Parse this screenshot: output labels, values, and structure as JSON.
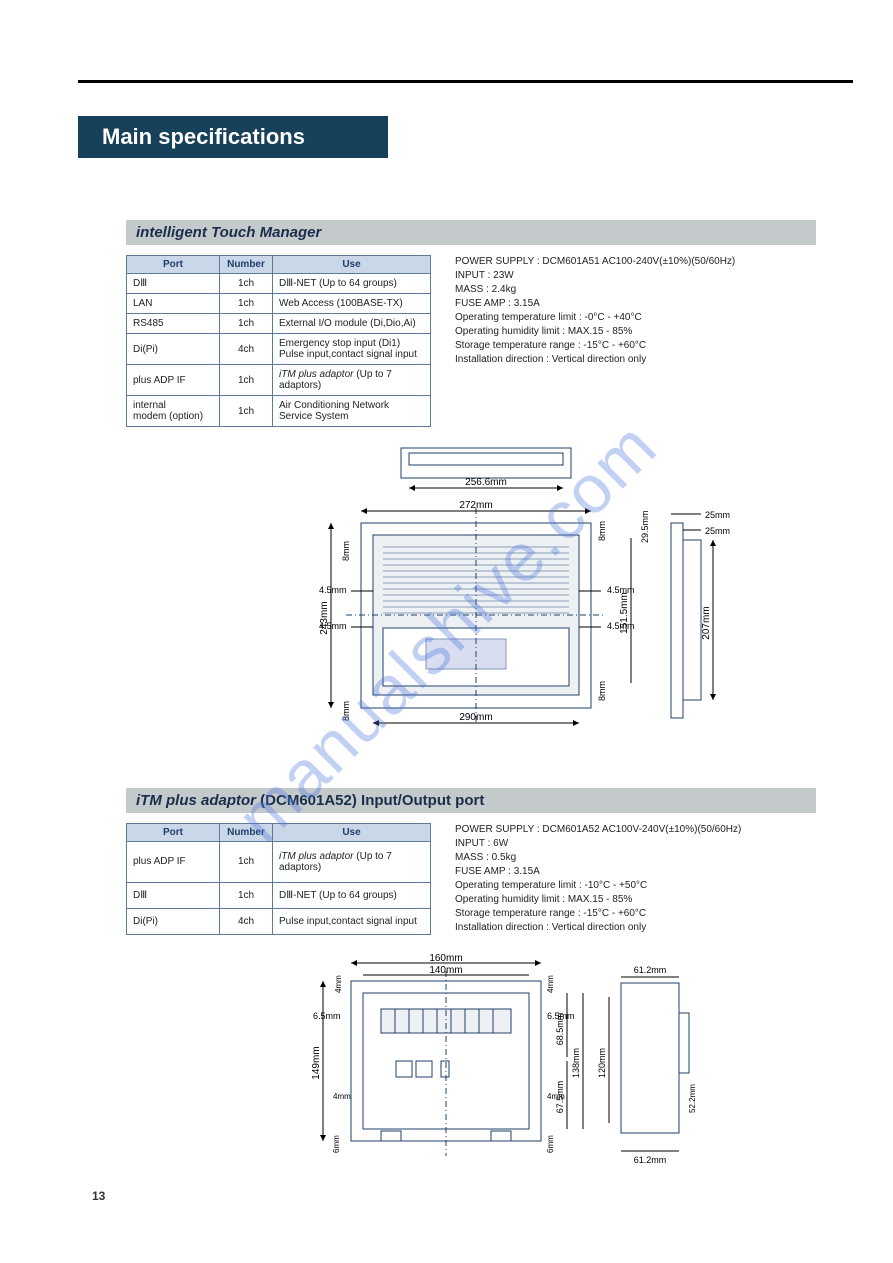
{
  "page_number": "13",
  "watermark": "manualshive.com",
  "main_title": "Main specifications",
  "section1": {
    "title": "intelligent Touch Manager",
    "columns": [
      "Port",
      "Number",
      "Use"
    ],
    "rows": [
      [
        "DⅢ",
        "1ch",
        "DⅢ-NET (Up to 64 groups)"
      ],
      [
        "LAN",
        "1ch",
        "Web Access (100BASE-TX)"
      ],
      [
        "RS485",
        "1ch",
        "External I/O module (Di,Dio,Ai)"
      ],
      [
        "Di(Pi)",
        "4ch",
        "Emergency stop input (Di1)\nPulse input,contact signal input"
      ],
      [
        "plus ADP IF",
        "1ch",
        "iTM plus adaptor (Up to 7 adaptors)"
      ],
      [
        "internal\nmodem (option)",
        "1ch",
        "Air Conditioning Network\nService System"
      ]
    ],
    "specs": [
      "POWER SUPPLY : DCM601A51 AC100-240V(±10%)(50/60Hz)",
      "INPUT : 23W",
      "MASS : 2.4kg",
      "FUSE AMP : 3.15A",
      "Operating temperature limit : -0°C - +40°C",
      "Operating humidity limit : MAX.15 - 85%",
      "Storage temperature range : -15°C - +60°C",
      "Installation direction : Vertical direction only"
    ],
    "diagram": {
      "colors": {
        "stroke": "#20406a",
        "fill": "#ffffff",
        "dim": "#000000"
      },
      "top_view": {
        "width_label": "256.6mm"
      },
      "front_view": {
        "outer_width": "272mm",
        "inner_width": "290mm",
        "height": "243mm",
        "screen_h": "151.5mm",
        "side_gap_top": "8mm",
        "side_gap_bot": "8mm",
        "screw_gap1": "4.5mm",
        "screw_gap2": "4.5mm",
        "right_gap_top": "8mm",
        "right_gap_bot": "8mm",
        "screw_gap3": "4.5mm",
        "screw_gap4": "4.5mm"
      },
      "side_view": {
        "depth_top": "25mm",
        "depth_bot": "25mm",
        "body_h": "207mm",
        "front_offset": "29.5mm"
      }
    }
  },
  "section2": {
    "title_italic": "iTM plus adaptor",
    "title_rest": " (DCM601A52) Input/Output port",
    "columns": [
      "Port",
      "Number",
      "Use"
    ],
    "rows": [
      [
        "plus ADP IF",
        "1ch",
        "iTM plus adaptor (Up to 7 adaptors)"
      ],
      [
        "DⅢ",
        "1ch",
        "DⅢ-NET (Up to 64 groups)"
      ],
      [
        "Di(Pi)",
        "4ch",
        "Pulse input,contact signal input"
      ]
    ],
    "specs": [
      "POWER SUPPLY : DCM601A52 AC100V-240V(±10%)(50/60Hz)",
      "INPUT : 6W",
      "MASS : 0.5kg",
      "FUSE AMP : 3.15A",
      "Operating temperature limit : -10°C - +50°C",
      "Operating humidity limit : MAX.15 - 85%",
      "Storage temperature range : -15°C - +60°C",
      "Installation direction : Vertical direction only"
    ],
    "diagram": {
      "colors": {
        "stroke": "#20406a",
        "fill": "#ffffff",
        "dim": "#000000"
      },
      "front_view": {
        "outer_width": "160mm",
        "inner_width": "140mm",
        "height": "149mm",
        "inner_h": "138mm",
        "gap_tl": "4mm",
        "gap_tr": "4mm",
        "screw_l": "6.5mm",
        "screw_r": "6.5mm",
        "gap_bl": "4mm",
        "gap_br": "4mm",
        "notch_l": "6mm",
        "notch_r": "6mm",
        "col1": "68.5mm",
        "col2": "67.5mm"
      },
      "side_view": {
        "depth": "61.2mm",
        "depth2": "61.2mm",
        "h": "120mm",
        "notch": "52.2mm"
      }
    }
  }
}
